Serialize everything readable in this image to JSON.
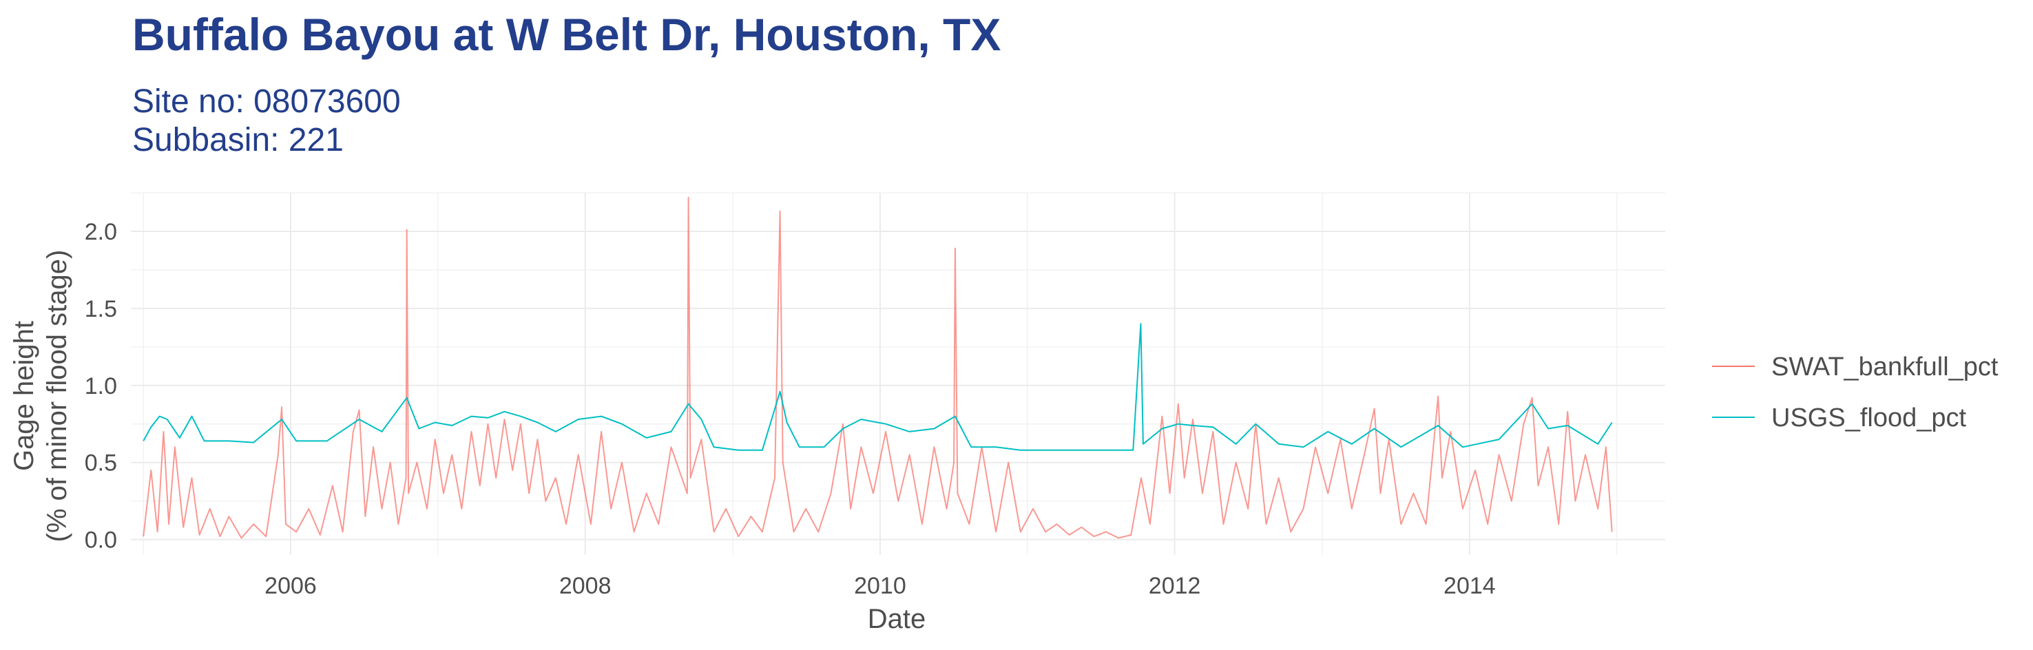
{
  "header": {
    "title": "Buffalo Bayou at W Belt Dr, Houston, TX",
    "subtitle_line1": "Site no: 08073600",
    "subtitle_line2": "Subbasin: 221"
  },
  "chart_data": {
    "type": "line",
    "xlabel": "Date",
    "ylabel_line1": "Gage height",
    "ylabel_line2": "(% of minor flood stage)",
    "x_tick_labels": [
      "2006",
      "2008",
      "2010",
      "2012",
      "2014"
    ],
    "y_tick_labels": [
      "0.0",
      "0.5",
      "1.0",
      "1.5",
      "2.0"
    ],
    "y_ticks": [
      0,
      0.5,
      1.0,
      1.5,
      2.0
    ],
    "x_range": [
      "2004-12-01",
      "2015-05-01"
    ],
    "ylim": [
      -0.1,
      2.25
    ],
    "grid": true,
    "legend_position": "right",
    "series": [
      {
        "name": "SWAT_bankfull_pct",
        "color": "#F8766D",
        "points": [
          [
            "2005-01-01",
            0.02
          ],
          [
            "2005-01-20",
            0.45
          ],
          [
            "2005-02-05",
            0.05
          ],
          [
            "2005-02-20",
            0.7
          ],
          [
            "2005-03-05",
            0.1
          ],
          [
            "2005-03-20",
            0.6
          ],
          [
            "2005-04-10",
            0.08
          ],
          [
            "2005-05-01",
            0.4
          ],
          [
            "2005-05-20",
            0.03
          ],
          [
            "2005-06-15",
            0.2
          ],
          [
            "2005-07-10",
            0.02
          ],
          [
            "2005-08-01",
            0.15
          ],
          [
            "2005-09-01",
            0.01
          ],
          [
            "2005-10-01",
            0.1
          ],
          [
            "2005-11-01",
            0.02
          ],
          [
            "2005-12-01",
            0.55
          ],
          [
            "2005-12-10",
            0.86
          ],
          [
            "2005-12-20",
            0.1
          ],
          [
            "2006-01-15",
            0.05
          ],
          [
            "2006-02-15",
            0.2
          ],
          [
            "2006-03-15",
            0.03
          ],
          [
            "2006-04-15",
            0.35
          ],
          [
            "2006-05-10",
            0.05
          ],
          [
            "2006-06-05",
            0.7
          ],
          [
            "2006-06-20",
            0.84
          ],
          [
            "2006-07-05",
            0.15
          ],
          [
            "2006-07-25",
            0.6
          ],
          [
            "2006-08-15",
            0.2
          ],
          [
            "2006-09-05",
            0.5
          ],
          [
            "2006-09-25",
            0.1
          ],
          [
            "2006-10-14",
            0.4
          ],
          [
            "2006-10-16",
            2.01
          ],
          [
            "2006-10-20",
            0.3
          ],
          [
            "2006-11-10",
            0.5
          ],
          [
            "2006-12-05",
            0.2
          ],
          [
            "2006-12-25",
            0.65
          ],
          [
            "2007-01-15",
            0.3
          ],
          [
            "2007-02-05",
            0.55
          ],
          [
            "2007-03-01",
            0.2
          ],
          [
            "2007-03-25",
            0.7
          ],
          [
            "2007-04-15",
            0.35
          ],
          [
            "2007-05-05",
            0.75
          ],
          [
            "2007-05-25",
            0.4
          ],
          [
            "2007-06-15",
            0.78
          ],
          [
            "2007-07-05",
            0.45
          ],
          [
            "2007-07-25",
            0.75
          ],
          [
            "2007-08-15",
            0.3
          ],
          [
            "2007-09-05",
            0.65
          ],
          [
            "2007-09-25",
            0.25
          ],
          [
            "2007-10-20",
            0.4
          ],
          [
            "2007-11-15",
            0.1
          ],
          [
            "2007-12-15",
            0.55
          ],
          [
            "2008-01-15",
            0.1
          ],
          [
            "2008-02-10",
            0.7
          ],
          [
            "2008-03-05",
            0.2
          ],
          [
            "2008-04-01",
            0.5
          ],
          [
            "2008-05-01",
            0.05
          ],
          [
            "2008-06-01",
            0.3
          ],
          [
            "2008-07-01",
            0.1
          ],
          [
            "2008-08-01",
            0.6
          ],
          [
            "2008-09-10",
            0.3
          ],
          [
            "2008-09-13",
            2.22
          ],
          [
            "2008-09-18",
            0.4
          ],
          [
            "2008-10-15",
            0.65
          ],
          [
            "2008-11-15",
            0.05
          ],
          [
            "2008-12-15",
            0.2
          ],
          [
            "2009-01-15",
            0.02
          ],
          [
            "2009-02-15",
            0.15
          ],
          [
            "2009-03-15",
            0.05
          ],
          [
            "2009-04-15",
            0.4
          ],
          [
            "2009-04-28",
            2.13
          ],
          [
            "2009-05-05",
            0.5
          ],
          [
            "2009-06-01",
            0.05
          ],
          [
            "2009-07-01",
            0.2
          ],
          [
            "2009-08-01",
            0.05
          ],
          [
            "2009-09-01",
            0.3
          ],
          [
            "2009-10-01",
            0.75
          ],
          [
            "2009-10-20",
            0.2
          ],
          [
            "2009-11-15",
            0.6
          ],
          [
            "2009-12-15",
            0.3
          ],
          [
            "2010-01-15",
            0.7
          ],
          [
            "2010-02-15",
            0.25
          ],
          [
            "2010-03-15",
            0.55
          ],
          [
            "2010-04-15",
            0.1
          ],
          [
            "2010-05-15",
            0.6
          ],
          [
            "2010-06-15",
            0.2
          ],
          [
            "2010-07-03",
            0.5
          ],
          [
            "2010-07-06",
            1.89
          ],
          [
            "2010-07-12",
            0.3
          ],
          [
            "2010-08-10",
            0.1
          ],
          [
            "2010-09-10",
            0.6
          ],
          [
            "2010-10-15",
            0.05
          ],
          [
            "2010-11-15",
            0.5
          ],
          [
            "2010-12-15",
            0.05
          ],
          [
            "2011-01-15",
            0.2
          ],
          [
            "2011-02-15",
            0.05
          ],
          [
            "2011-03-15",
            0.1
          ],
          [
            "2011-04-15",
            0.03
          ],
          [
            "2011-05-15",
            0.08
          ],
          [
            "2011-06-15",
            0.02
          ],
          [
            "2011-07-15",
            0.05
          ],
          [
            "2011-08-15",
            0.01
          ],
          [
            "2011-09-15",
            0.03
          ],
          [
            "2011-10-10",
            0.4
          ],
          [
            "2011-11-01",
            0.1
          ],
          [
            "2011-12-01",
            0.8
          ],
          [
            "2011-12-20",
            0.3
          ],
          [
            "2012-01-10",
            0.88
          ],
          [
            "2012-01-25",
            0.4
          ],
          [
            "2012-02-15",
            0.78
          ],
          [
            "2012-03-10",
            0.3
          ],
          [
            "2012-04-05",
            0.7
          ],
          [
            "2012-05-01",
            0.1
          ],
          [
            "2012-06-01",
            0.5
          ],
          [
            "2012-07-01",
            0.2
          ],
          [
            "2012-07-20",
            0.75
          ],
          [
            "2012-08-15",
            0.1
          ],
          [
            "2012-09-15",
            0.4
          ],
          [
            "2012-10-15",
            0.05
          ],
          [
            "2012-11-15",
            0.2
          ],
          [
            "2012-12-15",
            0.6
          ],
          [
            "2013-01-15",
            0.3
          ],
          [
            "2013-02-15",
            0.65
          ],
          [
            "2013-03-15",
            0.2
          ],
          [
            "2013-04-15",
            0.55
          ],
          [
            "2013-05-10",
            0.85
          ],
          [
            "2013-05-25",
            0.3
          ],
          [
            "2013-06-15",
            0.65
          ],
          [
            "2013-07-15",
            0.1
          ],
          [
            "2013-08-15",
            0.3
          ],
          [
            "2013-09-15",
            0.1
          ],
          [
            "2013-10-15",
            0.93
          ],
          [
            "2013-10-25",
            0.4
          ],
          [
            "2013-11-15",
            0.7
          ],
          [
            "2013-12-15",
            0.2
          ],
          [
            "2014-01-15",
            0.45
          ],
          [
            "2014-02-15",
            0.1
          ],
          [
            "2014-03-15",
            0.55
          ],
          [
            "2014-04-15",
            0.25
          ],
          [
            "2014-05-15",
            0.75
          ],
          [
            "2014-06-05",
            0.92
          ],
          [
            "2014-06-20",
            0.35
          ],
          [
            "2014-07-15",
            0.6
          ],
          [
            "2014-08-10",
            0.1
          ],
          [
            "2014-09-01",
            0.83
          ],
          [
            "2014-09-20",
            0.25
          ],
          [
            "2014-10-15",
            0.55
          ],
          [
            "2014-11-15",
            0.2
          ],
          [
            "2014-12-05",
            0.6
          ],
          [
            "2014-12-20",
            0.05
          ]
        ]
      },
      {
        "name": "USGS_flood_pct",
        "color": "#00BFC4",
        "points": [
          [
            "2005-01-01",
            0.64
          ],
          [
            "2005-01-20",
            0.73
          ],
          [
            "2005-02-10",
            0.8
          ],
          [
            "2005-03-01",
            0.78
          ],
          [
            "2005-04-01",
            0.66
          ],
          [
            "2005-05-01",
            0.8
          ],
          [
            "2005-06-01",
            0.64
          ],
          [
            "2005-08-01",
            0.64
          ],
          [
            "2005-10-01",
            0.63
          ],
          [
            "2005-12-10",
            0.78
          ],
          [
            "2006-01-15",
            0.64
          ],
          [
            "2006-04-01",
            0.64
          ],
          [
            "2006-06-20",
            0.78
          ],
          [
            "2006-08-15",
            0.7
          ],
          [
            "2006-10-16",
            0.92
          ],
          [
            "2006-11-15",
            0.72
          ],
          [
            "2006-12-25",
            0.76
          ],
          [
            "2007-02-05",
            0.74
          ],
          [
            "2007-03-25",
            0.8
          ],
          [
            "2007-05-05",
            0.79
          ],
          [
            "2007-06-15",
            0.83
          ],
          [
            "2007-07-25",
            0.8
          ],
          [
            "2007-09-05",
            0.76
          ],
          [
            "2007-10-20",
            0.7
          ],
          [
            "2007-12-15",
            0.78
          ],
          [
            "2008-02-10",
            0.8
          ],
          [
            "2008-04-01",
            0.75
          ],
          [
            "2008-06-01",
            0.66
          ],
          [
            "2008-08-01",
            0.7
          ],
          [
            "2008-09-13",
            0.88
          ],
          [
            "2008-10-15",
            0.78
          ],
          [
            "2008-11-15",
            0.6
          ],
          [
            "2009-01-15",
            0.58
          ],
          [
            "2009-03-15",
            0.58
          ],
          [
            "2009-04-28",
            0.96
          ],
          [
            "2009-05-15",
            0.76
          ],
          [
            "2009-06-15",
            0.6
          ],
          [
            "2009-08-15",
            0.6
          ],
          [
            "2009-10-01",
            0.72
          ],
          [
            "2009-11-15",
            0.78
          ],
          [
            "2010-01-15",
            0.75
          ],
          [
            "2010-03-15",
            0.7
          ],
          [
            "2010-05-15",
            0.72
          ],
          [
            "2010-07-06",
            0.8
          ],
          [
            "2010-08-15",
            0.6
          ],
          [
            "2010-10-15",
            0.6
          ],
          [
            "2010-12-15",
            0.58
          ],
          [
            "2011-03-15",
            0.58
          ],
          [
            "2011-06-15",
            0.58
          ],
          [
            "2011-09-20",
            0.58
          ],
          [
            "2011-10-09",
            1.4
          ],
          [
            "2011-10-15",
            0.62
          ],
          [
            "2011-12-01",
            0.72
          ],
          [
            "2012-01-10",
            0.75
          ],
          [
            "2012-02-15",
            0.74
          ],
          [
            "2012-04-05",
            0.73
          ],
          [
            "2012-06-01",
            0.62
          ],
          [
            "2012-07-20",
            0.75
          ],
          [
            "2012-09-15",
            0.62
          ],
          [
            "2012-11-15",
            0.6
          ],
          [
            "2013-01-15",
            0.7
          ],
          [
            "2013-03-15",
            0.62
          ],
          [
            "2013-05-10",
            0.72
          ],
          [
            "2013-07-15",
            0.6
          ],
          [
            "2013-10-15",
            0.74
          ],
          [
            "2013-12-15",
            0.6
          ],
          [
            "2014-03-15",
            0.65
          ],
          [
            "2014-06-05",
            0.88
          ],
          [
            "2014-07-15",
            0.72
          ],
          [
            "2014-09-01",
            0.74
          ],
          [
            "2014-11-15",
            0.62
          ],
          [
            "2014-12-20",
            0.76
          ]
        ]
      }
    ]
  }
}
